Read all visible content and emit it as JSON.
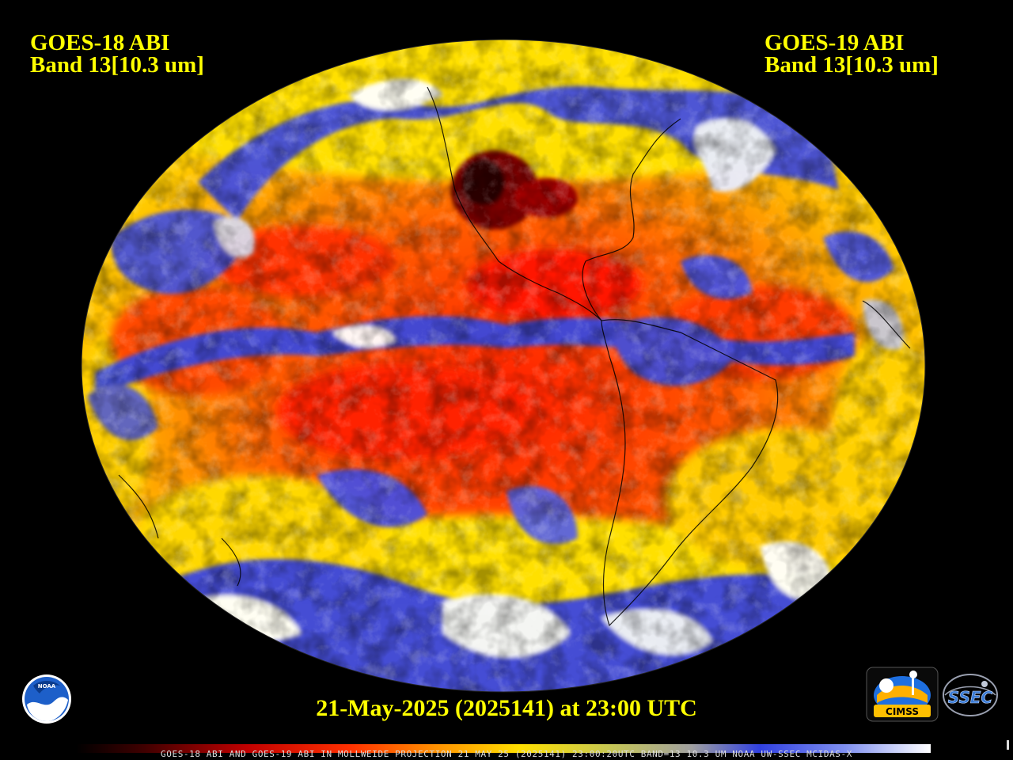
{
  "header": {
    "left": {
      "satellite": "GOES-18 ABI",
      "band": "Band 13[10.3 um]"
    },
    "right": {
      "satellite": "GOES-19 ABI",
      "band": "Band 13[10.3 um]"
    }
  },
  "timestamp": "21-May-2025 (2025141) at 23:00 UTC",
  "footer": "GOES-18 ABI AND GOES-19 ABI IN MOLLWEIDE PROJECTION 21 MAY 25 (2025141) 23:00:20UTC BAND=13 10.3 UM NOAA UW-SSEC MCIDAS-X",
  "logos": {
    "noaa": "NOAA",
    "cimss": "CIMSS",
    "ssec": "SSEC"
  },
  "colors": {
    "label_text": "#ffff00",
    "background": "#000000",
    "warm": "#ff2a00",
    "mid": "#ff9a00",
    "cool": "#ffe400",
    "cloud_low": "#3340e6",
    "cloud_high": "#ffffff"
  }
}
